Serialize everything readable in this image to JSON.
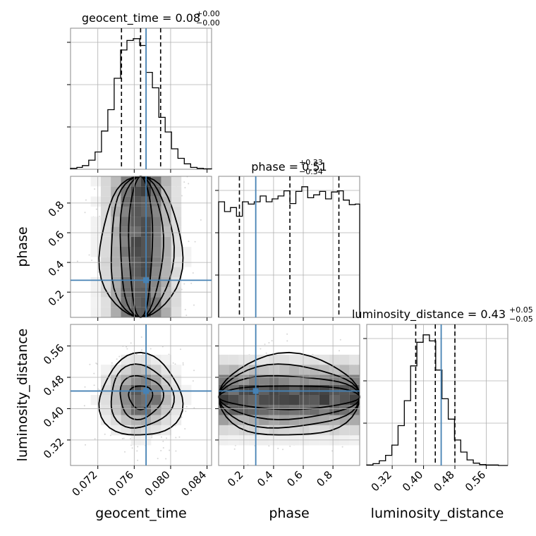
{
  "chart_data": {
    "type": "corner",
    "grid": true,
    "colors": {
      "hist": "#000000",
      "truth": "#4682b4",
      "quantile": "#000000",
      "contour": "#000000",
      "points": "#bbbbbb",
      "gridline": "#b0b0b0"
    },
    "parameters": [
      {
        "name": "geocent_time",
        "axis_label": "geocent_time",
        "title_main": "geocent_time = 0.08",
        "title_plus": "+0.00",
        "title_minus": "−0.00",
        "range": [
          0.069,
          0.0845
        ],
        "ticks": [
          0.072,
          0.076,
          0.08,
          0.084
        ],
        "tick_labels": [
          "0.072",
          "0.076",
          "0.080",
          "0.084"
        ],
        "truth": 0.0773,
        "quantiles": [
          0.0746,
          0.0767,
          0.0789
        ],
        "hist": {
          "edges": [
            0.069,
            0.0697,
            0.0703,
            0.071,
            0.0717,
            0.0724,
            0.0731,
            0.0738,
            0.0745,
            0.0752,
            0.0759,
            0.0766,
            0.0773,
            0.078,
            0.0787,
            0.0794,
            0.0801,
            0.0808,
            0.0815,
            0.0822,
            0.0829,
            0.0836,
            0.0845
          ],
          "counts": [
            2,
            4,
            8,
            20,
            38,
            84,
            131,
            200,
            262,
            283,
            287,
            272,
            213,
            179,
            114,
            82,
            45,
            24,
            12,
            4,
            2,
            1
          ]
        }
      },
      {
        "name": "phase",
        "axis_label": "phase",
        "title_main": "phase = 0.51",
        "title_plus": "+0.33",
        "title_minus": "−0.34",
        "range": [
          0.03,
          0.98
        ],
        "ticks": [
          0.2,
          0.4,
          0.6,
          0.8
        ],
        "tick_labels": [
          "0.2",
          "0.4",
          "0.6",
          "0.8"
        ],
        "truth": 0.28,
        "quantiles": [
          0.17,
          0.51,
          0.84
        ],
        "hist": {
          "edges": [
            0.03,
            0.07,
            0.11,
            0.15,
            0.19,
            0.23,
            0.27,
            0.31,
            0.35,
            0.39,
            0.43,
            0.47,
            0.51,
            0.55,
            0.59,
            0.63,
            0.67,
            0.71,
            0.75,
            0.79,
            0.83,
            0.87,
            0.91,
            0.95,
            0.98
          ],
          "counts": [
            200,
            183,
            190,
            175,
            200,
            196,
            200,
            210,
            200,
            205,
            210,
            219,
            197,
            218,
            226,
            207,
            212,
            218,
            205,
            217,
            219,
            203,
            195,
            196
          ]
        }
      },
      {
        "name": "luminosity_distance",
        "axis_label": "luminosity_distance",
        "title_main": "luminosity_distance = 0.43",
        "title_plus": "+0.05",
        "title_minus": "−0.05",
        "range": [
          0.255,
          0.615
        ],
        "ticks": [
          0.32,
          0.4,
          0.48,
          0.56
        ],
        "tick_labels": [
          "0.32",
          "0.40",
          "0.48",
          "0.56"
        ],
        "truth": 0.445,
        "quantiles": [
          0.38,
          0.43,
          0.48
        ],
        "hist": {
          "edges": [
            0.255,
            0.271,
            0.287,
            0.303,
            0.319,
            0.335,
            0.351,
            0.367,
            0.383,
            0.399,
            0.415,
            0.431,
            0.447,
            0.463,
            0.479,
            0.495,
            0.511,
            0.527,
            0.543,
            0.559,
            0.575,
            0.591,
            0.615
          ],
          "counts": [
            1,
            4,
            10,
            22,
            44,
            86,
            140,
            215,
            266,
            282,
            269,
            206,
            144,
            100,
            55,
            29,
            12,
            5,
            2,
            1,
            1,
            0
          ]
        }
      }
    ],
    "pairs": [
      {
        "x": 0,
        "y": 1
      },
      {
        "x": 0,
        "y": 2
      },
      {
        "x": 1,
        "y": 2
      }
    ]
  }
}
